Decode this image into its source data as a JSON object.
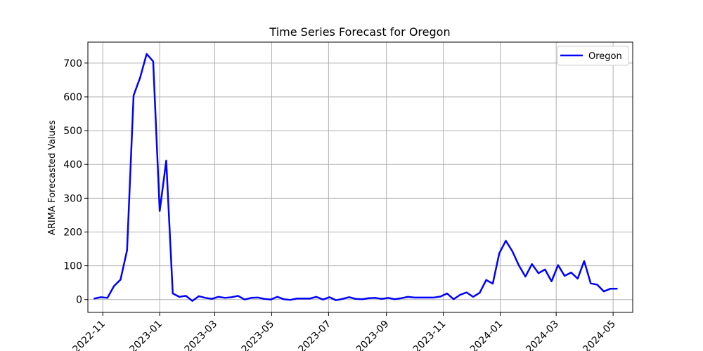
{
  "chart_data": {
    "type": "line",
    "title": "Time Series Forecast for Oregon",
    "xlabel": "",
    "ylabel": "ARIMA Forecasted Values",
    "x_type": "date",
    "x_ticks": [
      "2022-11",
      "2023-01",
      "2023-03",
      "2023-05",
      "2023-07",
      "2023-09",
      "2023-11",
      "2024-01",
      "2024-03",
      "2024-05"
    ],
    "xlim": [
      "2022-10-16",
      "2024-05-22"
    ],
    "y_ticks": [
      0,
      100,
      200,
      300,
      400,
      500,
      600,
      700
    ],
    "ylim": [
      -38,
      762
    ],
    "grid": true,
    "legend": "top-right",
    "colors": {
      "Oregon": "#0000ff"
    },
    "series": [
      {
        "name": "Oregon",
        "color": "#0000ff",
        "x": [
          "2022-10-23",
          "2022-10-30",
          "2022-11-06",
          "2022-11-13",
          "2022-11-20",
          "2022-11-27",
          "2022-12-04",
          "2022-12-11",
          "2022-12-18",
          "2022-12-25",
          "2023-01-01",
          "2023-01-08",
          "2023-01-15",
          "2023-01-22",
          "2023-01-29",
          "2023-02-05",
          "2023-02-12",
          "2023-02-19",
          "2023-02-26",
          "2023-03-05",
          "2023-03-12",
          "2023-03-19",
          "2023-03-26",
          "2023-04-02",
          "2023-04-09",
          "2023-04-16",
          "2023-04-23",
          "2023-04-30",
          "2023-05-07",
          "2023-05-14",
          "2023-05-21",
          "2023-05-28",
          "2023-06-04",
          "2023-06-11",
          "2023-06-18",
          "2023-06-25",
          "2023-07-02",
          "2023-07-09",
          "2023-07-16",
          "2023-07-23",
          "2023-07-30",
          "2023-08-06",
          "2023-08-13",
          "2023-08-20",
          "2023-08-27",
          "2023-09-03",
          "2023-09-10",
          "2023-09-17",
          "2023-09-24",
          "2023-10-01",
          "2023-10-08",
          "2023-10-15",
          "2023-10-22",
          "2023-10-29",
          "2023-11-05",
          "2023-11-12",
          "2023-11-19",
          "2023-11-26",
          "2023-12-03",
          "2023-12-10",
          "2023-12-17",
          "2023-12-24",
          "2023-12-31",
          "2024-01-07",
          "2024-01-14",
          "2024-01-21",
          "2024-01-28",
          "2024-02-04",
          "2024-02-11",
          "2024-02-18",
          "2024-02-25",
          "2024-03-03",
          "2024-03-10",
          "2024-03-17",
          "2024-03-24",
          "2024-03-31",
          "2024-04-07",
          "2024-04-14",
          "2024-04-21",
          "2024-04-28",
          "2024-05-05"
        ],
        "y": [
          3,
          7,
          5,
          40,
          59,
          146,
          604,
          657,
          727,
          705,
          262,
          411,
          18,
          8,
          11,
          -4,
          10,
          5,
          2,
          8,
          5,
          7,
          11,
          0,
          5,
          6,
          2,
          0,
          8,
          1,
          -1,
          3,
          3,
          3,
          8,
          0,
          7,
          -2,
          2,
          7,
          2,
          1,
          4,
          5,
          2,
          5,
          1,
          4,
          8,
          6,
          6,
          6,
          6,
          9,
          18,
          1,
          14,
          21,
          8,
          20,
          58,
          47,
          137,
          174,
          143,
          101,
          68,
          105,
          78,
          89,
          54,
          102,
          70,
          80,
          62,
          114,
          48,
          44,
          24,
          32,
          32
        ]
      }
    ]
  }
}
